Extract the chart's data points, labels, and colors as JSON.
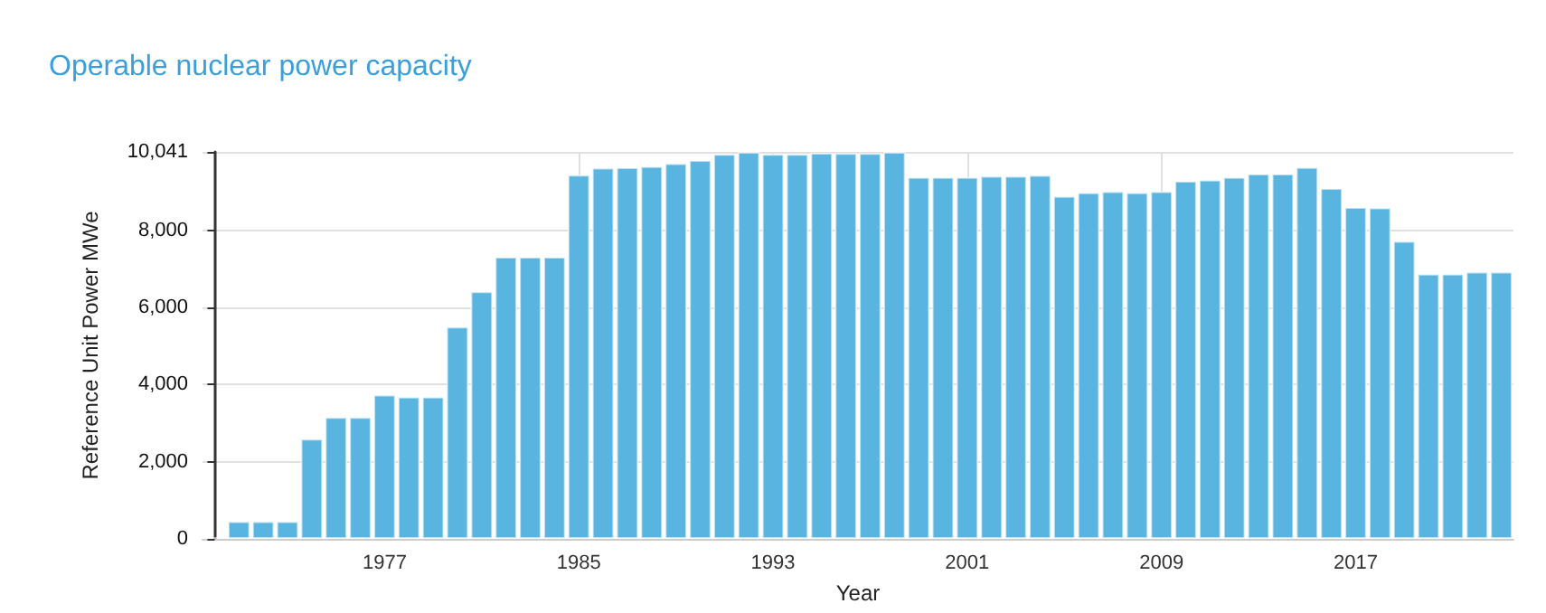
{
  "chart_data": {
    "type": "bar",
    "title": "Operable nuclear power capacity",
    "xlabel": "Year",
    "ylabel": "Reference Unit Power MWe",
    "categories": [
      null,
      null,
      null,
      null,
      null,
      null,
      null,
      "1977",
      null,
      null,
      null,
      null,
      null,
      null,
      null,
      "1985",
      null,
      null,
      null,
      null,
      null,
      null,
      null,
      "1993",
      null,
      null,
      null,
      null,
      null,
      null,
      null,
      "2001",
      null,
      null,
      null,
      null,
      null,
      null,
      null,
      "2009",
      null,
      null,
      null,
      null,
      null,
      null,
      null,
      "2017",
      null,
      null,
      null,
      null,
      null,
      null
    ],
    "values": [
      45,
      460,
      460,
      460,
      2600,
      3160,
      3160,
      3740,
      3690,
      3690,
      5510,
      6420,
      7320,
      7320,
      7320,
      9450,
      9630,
      9640,
      9670,
      9750,
      9830,
      9990,
      10040,
      9990,
      9990,
      10020,
      10010,
      10010,
      10040,
      9390,
      9390,
      9390,
      9420,
      9420,
      9440,
      8900,
      8990,
      9020,
      8990,
      9020,
      9290,
      9320,
      9390,
      9480,
      9480,
      9650,
      9100,
      8610,
      8600,
      7730,
      6880,
      6880,
      6930,
      6930
    ],
    "color": "#5ab4e0",
    "ylim": [
      0,
      10041
    ],
    "yticks": [
      {
        "value": 0,
        "label": "0"
      },
      {
        "value": 2000,
        "label": "2,000"
      },
      {
        "value": 4000,
        "label": "4,000"
      },
      {
        "value": 6000,
        "label": "6,000"
      },
      {
        "value": 8000,
        "label": "8,000"
      },
      {
        "value": 10041,
        "label": "10,041"
      }
    ],
    "grid": true
  }
}
